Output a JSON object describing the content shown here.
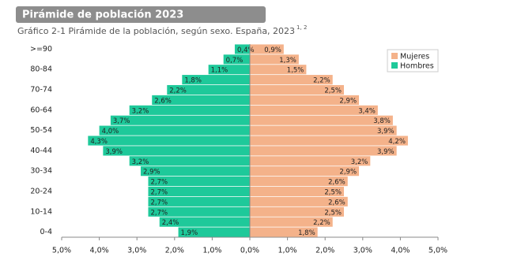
{
  "chart_data": {
    "type": "pyramid",
    "title": "Pirámide de población 2023",
    "subtitle": "Gráfico 2-1 Pirámide de la población, según sexo. España, 2023",
    "subtitle_note": "1, 2",
    "categories": [
      "0-4",
      null,
      "10-14",
      null,
      "20-24",
      null,
      "30-34",
      null,
      "40-44",
      null,
      "50-54",
      null,
      "60-64",
      null,
      "70-74",
      null,
      "80-84",
      null,
      ">=90"
    ],
    "series": [
      {
        "name": "Mujeres",
        "color": "#f4b28a",
        "side": "right",
        "values": [
          1.8,
          2.2,
          2.5,
          2.6,
          2.5,
          2.6,
          2.9,
          3.2,
          3.9,
          4.2,
          3.9,
          3.8,
          3.4,
          2.9,
          2.5,
          2.2,
          1.5,
          1.3,
          0.9
        ],
        "value_labels": [
          "1,8%",
          "2,2%",
          "2,5%",
          "2,6%",
          "2,5%",
          "2,6%",
          "2,9%",
          "3,2%",
          "3,9%",
          "4,2%",
          "3,9%",
          "3,8%",
          "3,4%",
          "2,9%",
          "2,5%",
          "2,2%",
          "1,5%",
          "1,3%",
          "0,9%"
        ]
      },
      {
        "name": "Hombres",
        "color": "#1ec99a",
        "side": "left",
        "values": [
          1.9,
          2.4,
          2.7,
          2.7,
          2.7,
          2.7,
          2.9,
          3.2,
          3.9,
          4.3,
          4.0,
          3.7,
          3.2,
          2.6,
          2.2,
          1.8,
          1.1,
          0.7,
          0.4
        ],
        "value_labels": [
          "1,9%",
          "2,4%",
          "2,7%",
          "2,7%",
          "2,7%",
          "2,7%",
          "2,9%",
          "3,2%",
          "3,9%",
          "4,3%",
          "4,0%",
          "3,7%",
          "3,2%",
          "2,6%",
          "2,2%",
          "1,8%",
          "1,1%",
          "0,7%",
          "0,4%"
        ]
      }
    ],
    "xlim": [
      -5,
      5
    ],
    "xticks": [
      {
        "value": -5,
        "label": "5,0%"
      },
      {
        "value": -4,
        "label": "4,0%"
      },
      {
        "value": -3,
        "label": "3,0%"
      },
      {
        "value": -2,
        "label": "2,0%"
      },
      {
        "value": -1,
        "label": "1,0%"
      },
      {
        "value": 0,
        "label": "0,0%"
      },
      {
        "value": 1,
        "label": "1,0%"
      },
      {
        "value": 2,
        "label": "2,0%"
      },
      {
        "value": 3,
        "label": "3,0%"
      },
      {
        "value": 4,
        "label": "4,0%"
      },
      {
        "value": 5,
        "label": "5,0%"
      }
    ],
    "legend": "top-right"
  }
}
